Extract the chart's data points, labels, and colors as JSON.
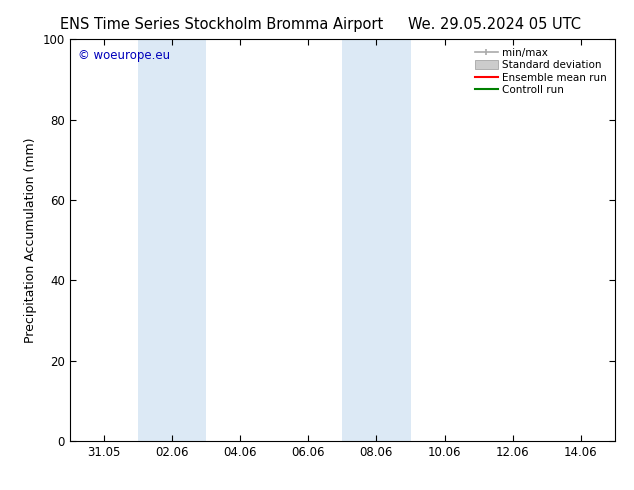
{
  "title_left": "ENS Time Series Stockholm Bromma Airport",
  "title_right": "We. 29.05.2024 05 UTC",
  "ylabel": "Precipitation Accumulation (mm)",
  "ylim": [
    0,
    100
  ],
  "xlim": [
    0,
    16
  ],
  "xtick_labels": [
    "31.05",
    "02.06",
    "04.06",
    "06.06",
    "08.06",
    "10.06",
    "12.06",
    "14.06"
  ],
  "xtick_positions": [
    1.0,
    3.0,
    5.0,
    7.0,
    9.0,
    11.0,
    13.0,
    15.0
  ],
  "shaded_bands": [
    {
      "x_start": 2.0,
      "x_end": 4.0
    },
    {
      "x_start": 8.0,
      "x_end": 10.0
    }
  ],
  "band_color": "#dce9f5",
  "copyright_text": "© woeurope.eu",
  "copyright_color": "#0000bb",
  "legend_items": [
    {
      "label": "min/max",
      "color": "#aaaaaa",
      "style": "errbar"
    },
    {
      "label": "Standard deviation",
      "color": "#cccccc",
      "style": "box"
    },
    {
      "label": "Ensemble mean run",
      "color": "#ff0000",
      "style": "line"
    },
    {
      "label": "Controll run",
      "color": "#008000",
      "style": "line"
    }
  ],
  "bg_color": "#ffffff",
  "spine_color": "#000000",
  "yticks": [
    0,
    20,
    40,
    60,
    80,
    100
  ],
  "tick_label_fontsize": 8.5,
  "axis_label_fontsize": 9,
  "title_fontsize": 10.5,
  "legend_fontsize": 7.5
}
